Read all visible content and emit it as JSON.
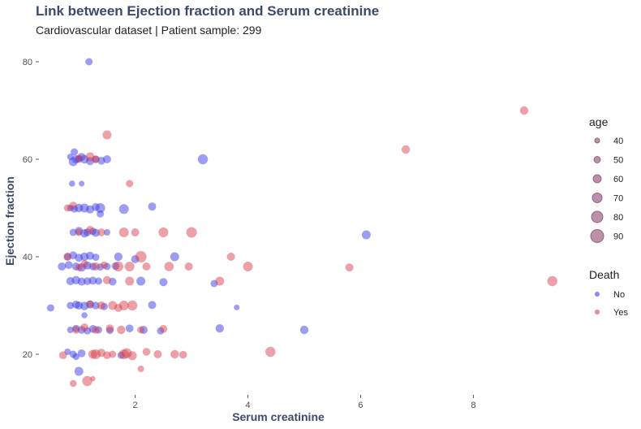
{
  "title": "Link between Ejection fraction and Serum creatinine",
  "subtitle": "Cardiovascular dataset | Patient sample: 299",
  "colors": {
    "No": "#3c3ce6",
    "Yes": "#d63a48",
    "title": "#3b4a6b",
    "size_legend": "#8a4a72"
  },
  "chart_data": {
    "type": "scatter",
    "title": "Link between Ejection fraction and Serum creatinine",
    "subtitle": "Cardiovascular dataset | Patient sample: 299",
    "xlabel": "Serum creatinine",
    "ylabel": "Ejection fraction",
    "xlim": [
      0.35,
      9.75
    ],
    "ylim": [
      12,
      83
    ],
    "x_ticks": [
      "2",
      "4",
      "6",
      "8"
    ],
    "y_ticks": [
      "20",
      "40",
      "60",
      "80"
    ],
    "x_tick_values": [
      2,
      4,
      6,
      8
    ],
    "y_tick_values": [
      20,
      40,
      60,
      80
    ],
    "grid": false,
    "legend_position": "right",
    "size_legend": {
      "title": "age",
      "values": [
        40,
        50,
        60,
        70,
        80,
        90
      ],
      "labels": [
        "40",
        "50",
        "60",
        "70",
        "80",
        "90"
      ]
    },
    "color_legend": {
      "title": "Death",
      "values": [
        "No",
        "Yes"
      ],
      "labels": [
        "No",
        "Yes"
      ]
    },
    "series": [
      {
        "name": "No",
        "points": [
          [
            1.18,
            80,
            55
          ],
          [
            3.2,
            60,
            72
          ],
          [
            6.1,
            44.5,
            65
          ],
          [
            5.0,
            25,
            62
          ],
          [
            3.5,
            25.3,
            62
          ],
          [
            0.95,
            60,
            60
          ],
          [
            1.0,
            60,
            55
          ],
          [
            0.9,
            59.5,
            65
          ],
          [
            1.05,
            60.5,
            58
          ],
          [
            1.1,
            60,
            62
          ],
          [
            1.2,
            59.6,
            60
          ],
          [
            1.3,
            60,
            55
          ],
          [
            1.4,
            59.7,
            58
          ],
          [
            1.5,
            60,
            60
          ],
          [
            0.85,
            60.5,
            50
          ],
          [
            0.92,
            61.5,
            55
          ],
          [
            0.88,
            55,
            48
          ],
          [
            1.05,
            55,
            45
          ],
          [
            1.0,
            50,
            62
          ],
          [
            1.1,
            50,
            65
          ],
          [
            1.2,
            49.7,
            60
          ],
          [
            1.3,
            50.2,
            58
          ],
          [
            1.38,
            50,
            70
          ],
          [
            0.92,
            49.8,
            55
          ],
          [
            0.85,
            50,
            50
          ],
          [
            1.8,
            49.8,
            70
          ],
          [
            2.3,
            50.3,
            60
          ],
          [
            0.9,
            45,
            55
          ],
          [
            1.0,
            45.3,
            60
          ],
          [
            1.1,
            44.8,
            62
          ],
          [
            1.15,
            45,
            58
          ],
          [
            1.25,
            45.2,
            55
          ],
          [
            1.3,
            44.9,
            60
          ],
          [
            1.5,
            45,
            50
          ],
          [
            0.8,
            40,
            55
          ],
          [
            0.9,
            40.3,
            58
          ],
          [
            1.0,
            39.8,
            60
          ],
          [
            1.1,
            40,
            62
          ],
          [
            1.2,
            40.2,
            60
          ],
          [
            1.3,
            39.9,
            55
          ],
          [
            1.7,
            40,
            62
          ],
          [
            2.0,
            39.5,
            60
          ],
          [
            2.7,
            40,
            65
          ],
          [
            0.7,
            38,
            60
          ],
          [
            0.82,
            38.3,
            58
          ],
          [
            0.95,
            38,
            60
          ],
          [
            1.05,
            37.8,
            62
          ],
          [
            1.15,
            38.2,
            60
          ],
          [
            1.25,
            38,
            58
          ],
          [
            1.38,
            37.9,
            55
          ],
          [
            1.5,
            38,
            55
          ],
          [
            1.65,
            38.1,
            58
          ],
          [
            0.85,
            35,
            60
          ],
          [
            0.95,
            35.2,
            62
          ],
          [
            1.05,
            34.9,
            60
          ],
          [
            1.15,
            35,
            58
          ],
          [
            1.25,
            35.1,
            60
          ],
          [
            1.35,
            35,
            55
          ],
          [
            1.6,
            34.9,
            58
          ],
          [
            2.1,
            35,
            65
          ],
          [
            2.5,
            34.8,
            60
          ],
          [
            3.4,
            34.5,
            55
          ],
          [
            0.85,
            30,
            55
          ],
          [
            0.95,
            30.2,
            58
          ],
          [
            1.0,
            30,
            60
          ],
          [
            1.1,
            29.9,
            62
          ],
          [
            1.2,
            30.2,
            60
          ],
          [
            1.3,
            30,
            58
          ],
          [
            1.45,
            29.8,
            55
          ],
          [
            2.3,
            30.1,
            60
          ],
          [
            0.5,
            29.5,
            55
          ],
          [
            3.8,
            29.6,
            45
          ],
          [
            0.85,
            25,
            50
          ],
          [
            0.95,
            25.3,
            55
          ],
          [
            1.05,
            25,
            58
          ],
          [
            1.15,
            24.8,
            55
          ],
          [
            1.25,
            25.2,
            58
          ],
          [
            1.35,
            25,
            55
          ],
          [
            1.55,
            24.9,
            55
          ],
          [
            1.9,
            25.3,
            58
          ],
          [
            2.15,
            25,
            60
          ],
          [
            2.45,
            24.8,
            55
          ],
          [
            0.9,
            20,
            55
          ],
          [
            1.05,
            20.2,
            58
          ],
          [
            0.8,
            20.5,
            50
          ],
          [
            0.95,
            19.5,
            52
          ],
          [
            1.75,
            19.8,
            55
          ],
          [
            1.0,
            16.5,
            65
          ],
          [
            1.38,
            48.8,
            55
          ],
          [
            1.1,
            28,
            48
          ]
        ]
      },
      {
        "name": "Yes",
        "points": [
          [
            8.9,
            70,
            62
          ],
          [
            9.4,
            35,
            72
          ],
          [
            6.8,
            62,
            62
          ],
          [
            5.8,
            37.8,
            60
          ],
          [
            4.4,
            20.5,
            72
          ],
          [
            4.0,
            38,
            70
          ],
          [
            3.7,
            40,
            60
          ],
          [
            3.5,
            35,
            65
          ],
          [
            3.0,
            45,
            75
          ],
          [
            2.95,
            38,
            60
          ],
          [
            2.5,
            45,
            70
          ],
          [
            2.6,
            38,
            68
          ],
          [
            2.1,
            40,
            80
          ],
          [
            2.0,
            45,
            60
          ],
          [
            1.8,
            45,
            70
          ],
          [
            1.5,
            65,
            65
          ],
          [
            1.9,
            55,
            55
          ],
          [
            1.2,
            60.5,
            65
          ],
          [
            1.3,
            60,
            58
          ],
          [
            1.0,
            60.2,
            55
          ],
          [
            0.8,
            50,
            55
          ],
          [
            0.9,
            50.5,
            58
          ],
          [
            1.0,
            45,
            55
          ],
          [
            1.2,
            45.5,
            60
          ],
          [
            1.4,
            45,
            58
          ],
          [
            0.8,
            40,
            60
          ],
          [
            1.7,
            38,
            72
          ],
          [
            1.9,
            38,
            70
          ],
          [
            2.2,
            38,
            60
          ],
          [
            1.0,
            37.8,
            55
          ],
          [
            1.1,
            38.5,
            58
          ],
          [
            1.3,
            38,
            60
          ],
          [
            1.45,
            38.3,
            55
          ],
          [
            1.9,
            35,
            65
          ],
          [
            1.5,
            35.2,
            60
          ],
          [
            1.4,
            30,
            60
          ],
          [
            1.6,
            30,
            65
          ],
          [
            1.8,
            30,
            70
          ],
          [
            1.95,
            30,
            72
          ],
          [
            1.7,
            29.5,
            60
          ],
          [
            1.2,
            30.3,
            55
          ],
          [
            0.95,
            25,
            58
          ],
          [
            1.1,
            25.5,
            60
          ],
          [
            1.3,
            25,
            58
          ],
          [
            1.55,
            25.3,
            60
          ],
          [
            1.75,
            25,
            62
          ],
          [
            2.1,
            25,
            55
          ],
          [
            2.5,
            25.2,
            58
          ],
          [
            1.25,
            20,
            65
          ],
          [
            1.3,
            20,
            70
          ],
          [
            1.4,
            20.3,
            60
          ],
          [
            1.5,
            19.8,
            58
          ],
          [
            1.6,
            20,
            55
          ],
          [
            1.8,
            20,
            70
          ],
          [
            1.85,
            20.2,
            72
          ],
          [
            2.4,
            20,
            60
          ],
          [
            2.7,
            20,
            62
          ],
          [
            2.85,
            19.9,
            58
          ],
          [
            2.2,
            20.5,
            58
          ],
          [
            0.72,
            19.8,
            58
          ],
          [
            1.95,
            19.7,
            65
          ],
          [
            1.15,
            14.5,
            72
          ],
          [
            0.9,
            14,
            52
          ],
          [
            1.25,
            15,
            42
          ],
          [
            2.1,
            17,
            50
          ]
        ]
      }
    ]
  }
}
